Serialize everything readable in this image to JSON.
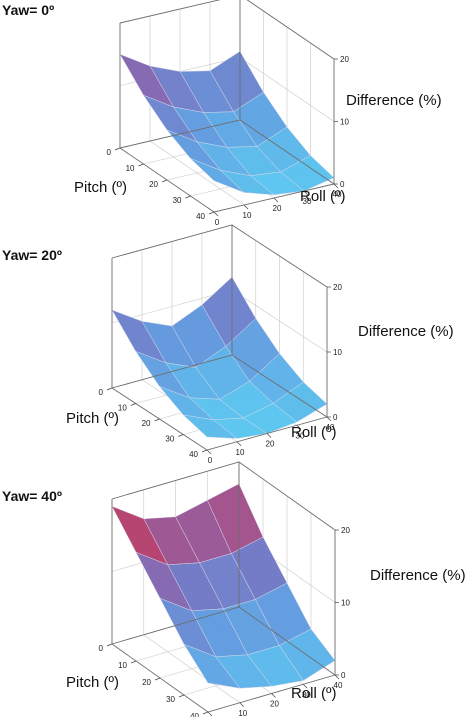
{
  "chart_data": [
    {
      "type": "surface",
      "title": "Yaw= 0º",
      "xlabel": "Pitch (º)",
      "ylabel": "Roll (º)",
      "zlabel": "Difference (%)",
      "x_ticks": [
        "0",
        "10",
        "20",
        "30",
        "40"
      ],
      "y_ticks": [
        "0",
        "10",
        "20",
        "30",
        "40"
      ],
      "z_ticks": [
        "0",
        "10",
        "20"
      ],
      "x": [
        0,
        10,
        20,
        30,
        40
      ],
      "y": [
        0,
        10,
        20,
        30,
        40
      ],
      "zlim": [
        0,
        20
      ],
      "z": [
        [
          15,
          12,
          10,
          9,
          11
        ],
        [
          11,
          8,
          6,
          5,
          7
        ],
        [
          8,
          5,
          3,
          2,
          4
        ],
        [
          6,
          3,
          1,
          0.5,
          2
        ],
        [
          5,
          2,
          0.5,
          0,
          1
        ]
      ]
    },
    {
      "type": "surface",
      "title": "Yaw= 20º",
      "xlabel": "Pitch (º)",
      "ylabel": "Roll (º)",
      "zlabel": "Difference (%)",
      "x_ticks": [
        "0",
        "10",
        "20",
        "30",
        "40"
      ],
      "y_ticks": [
        "0",
        "10",
        "20",
        "30",
        "40"
      ],
      "z_ticks": [
        "0",
        "10",
        "20"
      ],
      "x": [
        0,
        10,
        20,
        30,
        40
      ],
      "y": [
        0,
        10,
        20,
        30,
        40
      ],
      "zlim": [
        0,
        20
      ],
      "z": [
        [
          12,
          9,
          7,
          9,
          12
        ],
        [
          8,
          5,
          3,
          5,
          8
        ],
        [
          5,
          2,
          0.5,
          2,
          5
        ],
        [
          3,
          1,
          0,
          1,
          3
        ],
        [
          2,
          0.5,
          0,
          0.5,
          2
        ]
      ]
    },
    {
      "type": "surface",
      "title": "Yaw= 40º",
      "xlabel": "Pitch (º)",
      "ylabel": "Roll (º)",
      "zlabel": "Difference (%)",
      "x_ticks": [
        "0",
        "10",
        "20",
        "30",
        "40"
      ],
      "y_ticks": [
        "0",
        "10",
        "20",
        "30",
        "40"
      ],
      "z_ticks": [
        "0",
        "10",
        "20"
      ],
      "x": [
        0,
        10,
        20,
        30,
        40
      ],
      "y": [
        0,
        10,
        20,
        30,
        40
      ],
      "zlim": [
        0,
        20
      ],
      "z": [
        [
          19,
          16,
          15,
          16,
          17
        ],
        [
          15,
          12,
          11,
          11,
          12
        ],
        [
          11,
          8,
          7,
          7,
          8
        ],
        [
          7,
          4,
          3,
          3,
          4
        ],
        [
          4,
          2,
          1,
          0.5,
          2
        ]
      ]
    }
  ]
}
